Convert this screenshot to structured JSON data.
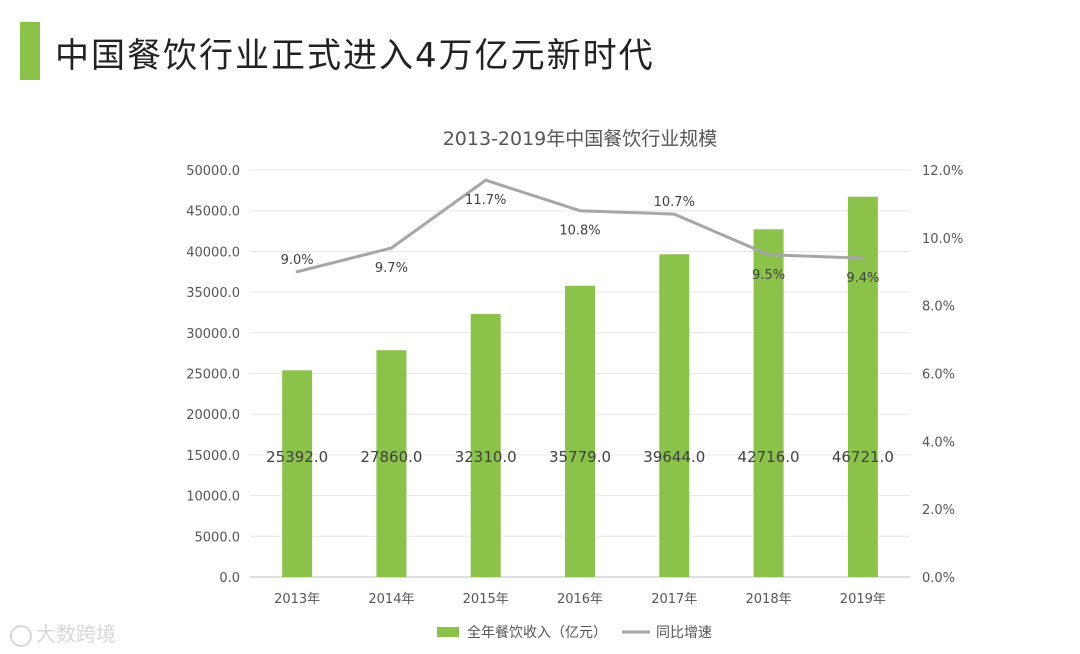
{
  "page": {
    "title": "中国餐饮行业正式进入4万亿元新时代",
    "accent_color": "#8bc34a"
  },
  "watermark": {
    "text": "大数跨境"
  },
  "chart_data": {
    "type": "bar+line",
    "title": "2013-2019年中国餐饮行业规模",
    "categories": [
      "2013年",
      "2014年",
      "2015年",
      "2016年",
      "2017年",
      "2018年",
      "2019年"
    ],
    "series": [
      {
        "name": "全年餐饮收入（亿元）",
        "type": "bar",
        "axis": "left",
        "color": "#8bc34a",
        "values": [
          25392.0,
          27860.0,
          32310.0,
          35779.0,
          39644.0,
          42716.0,
          46721.0
        ],
        "labels": [
          "25392.0",
          "27860.0",
          "32310.0",
          "35779.0",
          "39644.0",
          "42716.0",
          "46721.0"
        ]
      },
      {
        "name": "同比增速",
        "type": "line",
        "axis": "right",
        "color": "#a6a6a6",
        "values": [
          9.0,
          9.7,
          11.7,
          10.8,
          10.7,
          9.5,
          9.4
        ],
        "labels": [
          "9.0%",
          "9.7%",
          "11.7%",
          "10.8%",
          "10.7%",
          "9.5%",
          "9.4%"
        ]
      }
    ],
    "y_left": {
      "min": 0,
      "max": 50000,
      "ticks": [
        "0.0",
        "5000.0",
        "10000.0",
        "15000.0",
        "20000.0",
        "25000.0",
        "30000.0",
        "35000.0",
        "40000.0",
        "45000.0",
        "50000.0"
      ]
    },
    "y_right": {
      "min": 0,
      "max": 12,
      "ticks": [
        "0.0%",
        "2.0%",
        "4.0%",
        "6.0%",
        "8.0%",
        "10.0%",
        "12.0%"
      ]
    },
    "grid": true,
    "legend": "bottom"
  }
}
